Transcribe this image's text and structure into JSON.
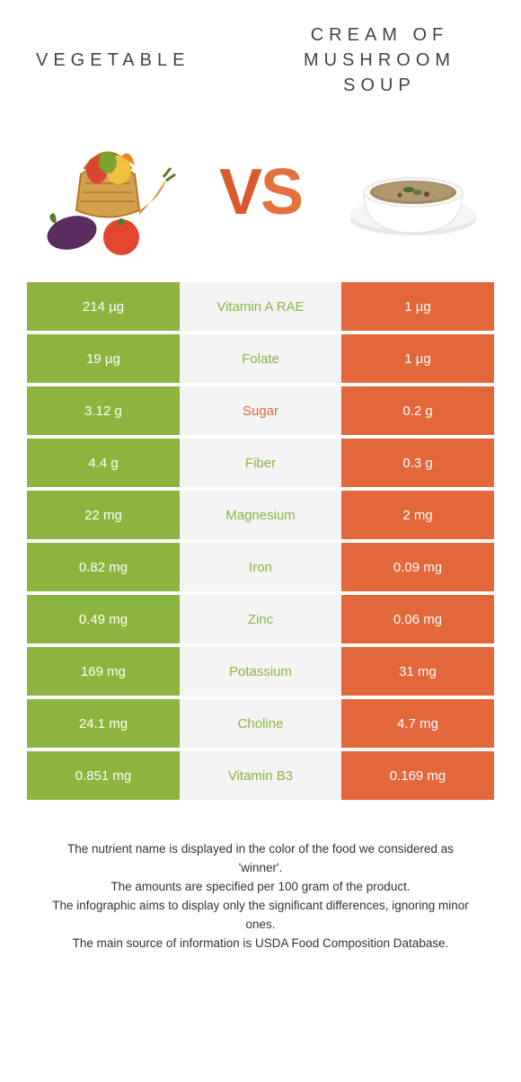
{
  "titles": {
    "left": "VEGETABLE",
    "right_line1": "CREAM OF",
    "right_line2": "MUSHROOM",
    "right_line3": "SOUP"
  },
  "vs": {
    "v": "V",
    "s": "S"
  },
  "colors": {
    "left_bar": "#8bb53e",
    "right_bar": "#e2673a",
    "mid_bg": "#f4f4f4",
    "left_label": "#8bb53e",
    "right_label": "#e2673a"
  },
  "rows": [
    {
      "left": "214 µg",
      "label": "Vitamin A RAE",
      "right": "1 µg",
      "label_color": "#8bb53e"
    },
    {
      "left": "19 µg",
      "label": "Folate",
      "right": "1 µg",
      "label_color": "#8bb53e"
    },
    {
      "left": "3.12 g",
      "label": "Sugar",
      "right": "0.2 g",
      "label_color": "#e2673a"
    },
    {
      "left": "4.4 g",
      "label": "Fiber",
      "right": "0.3 g",
      "label_color": "#8bb53e"
    },
    {
      "left": "22 mg",
      "label": "Magnesium",
      "right": "2 mg",
      "label_color": "#8bb53e"
    },
    {
      "left": "0.82 mg",
      "label": "Iron",
      "right": "0.09 mg",
      "label_color": "#8bb53e"
    },
    {
      "left": "0.49 mg",
      "label": "Zinc",
      "right": "0.06 mg",
      "label_color": "#8bb53e"
    },
    {
      "left": "169 mg",
      "label": "Potassium",
      "right": "31 mg",
      "label_color": "#8bb53e"
    },
    {
      "left": "24.1 mg",
      "label": "Choline",
      "right": "4.7 mg",
      "label_color": "#8bb53e"
    },
    {
      "left": "0.851 mg",
      "label": "Vitamin B3",
      "right": "0.169 mg",
      "label_color": "#8bb53e"
    }
  ],
  "notes": {
    "n1": "The nutrient name is displayed in the color of the food we considered as 'winner'.",
    "n2": "The amounts are specified per 100 gram of the product.",
    "n3": "The infographic aims to display only the significant differences, ignoring minor ones.",
    "n4": "The main source of information is USDA Food Composition Database."
  }
}
